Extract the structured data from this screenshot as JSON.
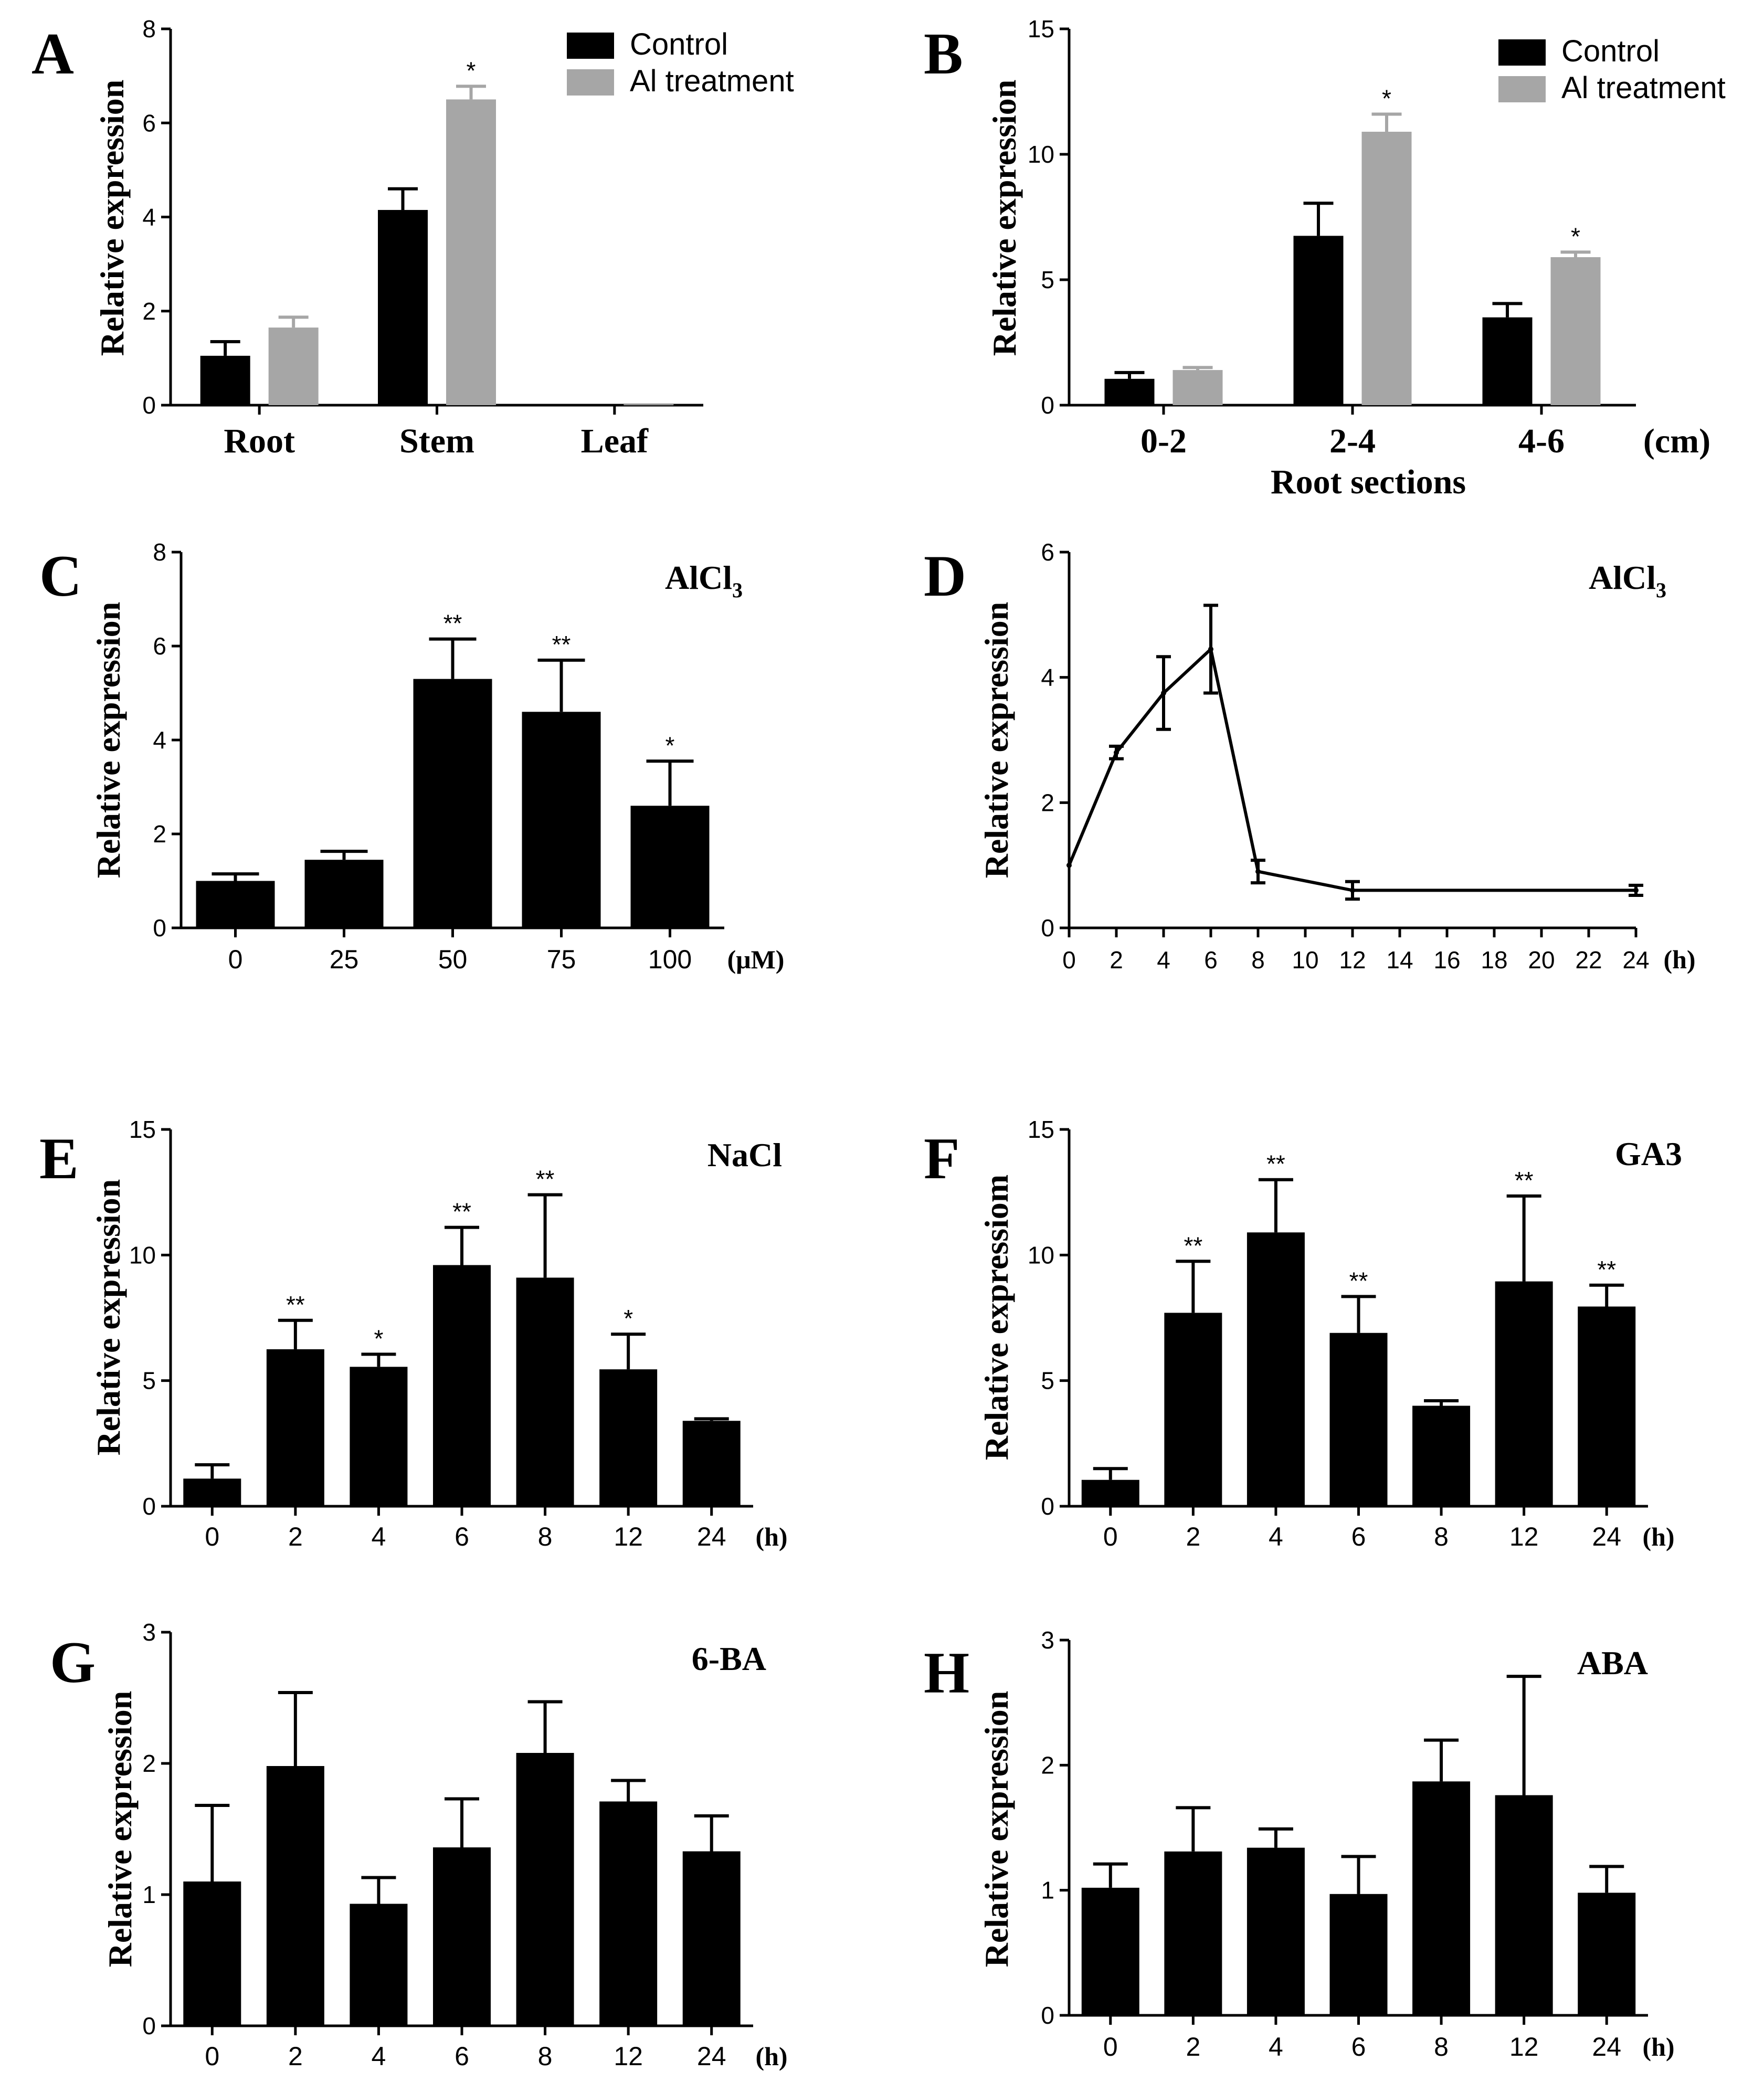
{
  "colors": {
    "control": "#000000",
    "treatment": "#a6a6a6",
    "axis": "#000000"
  },
  "chart_data": [
    {
      "panel": "A",
      "type": "bar",
      "title": "",
      "xlabel": "",
      "ylabel": "Relative expression",
      "ylim": [
        0,
        8
      ],
      "yticks": [
        "0",
        "2",
        "4",
        "6",
        "8"
      ],
      "categories": [
        "Root",
        "Stem",
        "Leaf"
      ],
      "legend_position": "top-right",
      "series": [
        {
          "name": "Control",
          "values": [
            1.05,
            4.15,
            0.02
          ],
          "errors": [
            0.3,
            0.45,
            0.01
          ],
          "marks": [
            "",
            "",
            ""
          ]
        },
        {
          "name": "Al treatment",
          "values": [
            1.65,
            6.5,
            0.02
          ],
          "errors": [
            0.22,
            0.28,
            0.01
          ],
          "marks": [
            "",
            "*",
            ""
          ]
        }
      ]
    },
    {
      "panel": "B",
      "type": "bar",
      "title": "",
      "xlabel": "Root sections",
      "unit": "(cm)",
      "ylabel": "Relative expression",
      "ylim": [
        0,
        15
      ],
      "yticks": [
        "0",
        "5",
        "10",
        "15"
      ],
      "categories": [
        "0-2",
        "2-4",
        "4-6"
      ],
      "legend_position": "top-right",
      "series": [
        {
          "name": "Control",
          "values": [
            1.05,
            6.75,
            3.5
          ],
          "errors": [
            0.25,
            1.3,
            0.55
          ],
          "marks": [
            "",
            "",
            ""
          ]
        },
        {
          "name": "Al treatment",
          "values": [
            1.4,
            10.9,
            5.9
          ],
          "errors": [
            0.1,
            0.7,
            0.2
          ],
          "marks": [
            "",
            "*",
            "*"
          ]
        }
      ]
    },
    {
      "panel": "C",
      "type": "bar",
      "title": "AlCl",
      "title_sub": "3",
      "xlabel": "",
      "unit": "(μM)",
      "ylabel": "Relative expression",
      "ylim": [
        0,
        8
      ],
      "yticks": [
        "0",
        "2",
        "4",
        "6",
        "8"
      ],
      "categories": [
        "0",
        "25",
        "50",
        "75",
        "100"
      ],
      "series": [
        {
          "name": "",
          "values": [
            1.0,
            1.45,
            5.3,
            4.6,
            2.6
          ],
          "errors": [
            0.15,
            0.18,
            0.85,
            1.1,
            0.95
          ],
          "marks": [
            "",
            "",
            "**",
            "**",
            "*"
          ]
        }
      ]
    },
    {
      "panel": "D",
      "type": "line",
      "title": "AlCl",
      "title_sub": "3",
      "xlabel": "",
      "unit": "(h)",
      "ylabel": "Relative expression",
      "ylim": [
        0,
        6
      ],
      "yticks": [
        "0",
        "2",
        "4",
        "6"
      ],
      "xlim": [
        0,
        24
      ],
      "xticks": [
        "0",
        "2",
        "4",
        "6",
        "8",
        "10",
        "12",
        "14",
        "16",
        "18",
        "20",
        "22",
        "24"
      ],
      "x": [
        0,
        2,
        4,
        6,
        8,
        12,
        24
      ],
      "series": [
        {
          "name": "",
          "values": [
            1.0,
            2.8,
            3.75,
            4.45,
            0.9,
            0.6,
            0.6
          ],
          "errors": [
            0,
            0.1,
            0.58,
            0.7,
            0.18,
            0.14,
            0.08
          ]
        }
      ]
    },
    {
      "panel": "E",
      "type": "bar",
      "title": "NaCl",
      "xlabel": "",
      "unit": "(h)",
      "ylabel": "Relative expression",
      "ylim": [
        0,
        15
      ],
      "yticks": [
        "0",
        "5",
        "10",
        "15"
      ],
      "categories": [
        "0",
        "2",
        "4",
        "6",
        "8",
        "12",
        "24"
      ],
      "series": [
        {
          "name": "",
          "values": [
            1.1,
            6.25,
            5.55,
            9.6,
            9.1,
            5.45,
            3.4
          ],
          "errors": [
            0.55,
            1.15,
            0.5,
            1.5,
            3.3,
            1.4,
            0.08
          ],
          "marks": [
            "",
            "**",
            "*",
            "**",
            "**",
            "*",
            ""
          ]
        }
      ]
    },
    {
      "panel": "F",
      "type": "bar",
      "title": "GA3",
      "xlabel": "",
      "unit": "(h)",
      "ylabel": "Relative expressiom",
      "ylim": [
        0,
        15
      ],
      "yticks": [
        "0",
        "5",
        "10",
        "15"
      ],
      "categories": [
        "0",
        "2",
        "4",
        "6",
        "8",
        "12",
        "24"
      ],
      "series": [
        {
          "name": "",
          "values": [
            1.05,
            7.7,
            10.9,
            6.9,
            4.0,
            8.95,
            7.95
          ],
          "errors": [
            0.45,
            2.05,
            2.1,
            1.45,
            0.2,
            3.4,
            0.85
          ],
          "marks": [
            "",
            "**",
            "**",
            "**",
            "",
            "**",
            "**"
          ]
        }
      ]
    },
    {
      "panel": "G",
      "type": "bar",
      "title": "6-BA",
      "xlabel": "",
      "unit": "(h)",
      "ylabel": "Relative expression",
      "ylim": [
        0,
        3
      ],
      "yticks": [
        "0",
        "1",
        "2",
        "3"
      ],
      "categories": [
        "0",
        "2",
        "4",
        "6",
        "8",
        "12",
        "24"
      ],
      "series": [
        {
          "name": "",
          "values": [
            1.1,
            1.98,
            0.93,
            1.36,
            2.08,
            1.71,
            1.33
          ],
          "errors": [
            0.58,
            0.56,
            0.2,
            0.37,
            0.39,
            0.16,
            0.27
          ],
          "marks": [
            "",
            "",
            "",
            "",
            "",
            "",
            ""
          ]
        }
      ]
    },
    {
      "panel": "H",
      "type": "bar",
      "title": "ABA",
      "xlabel": "",
      "unit": "(h)",
      "ylabel": "Relative expression",
      "ylim": [
        0,
        3
      ],
      "yticks": [
        "0",
        "1",
        "2",
        "3"
      ],
      "categories": [
        "0",
        "2",
        "4",
        "6",
        "8",
        "12",
        "24"
      ],
      "series": [
        {
          "name": "",
          "values": [
            1.02,
            1.31,
            1.34,
            0.97,
            1.87,
            1.76,
            0.98
          ],
          "errors": [
            0.19,
            0.35,
            0.15,
            0.3,
            0.33,
            0.95,
            0.21
          ],
          "marks": [
            "",
            "",
            "",
            "",
            "",
            "",
            ""
          ]
        }
      ]
    }
  ]
}
